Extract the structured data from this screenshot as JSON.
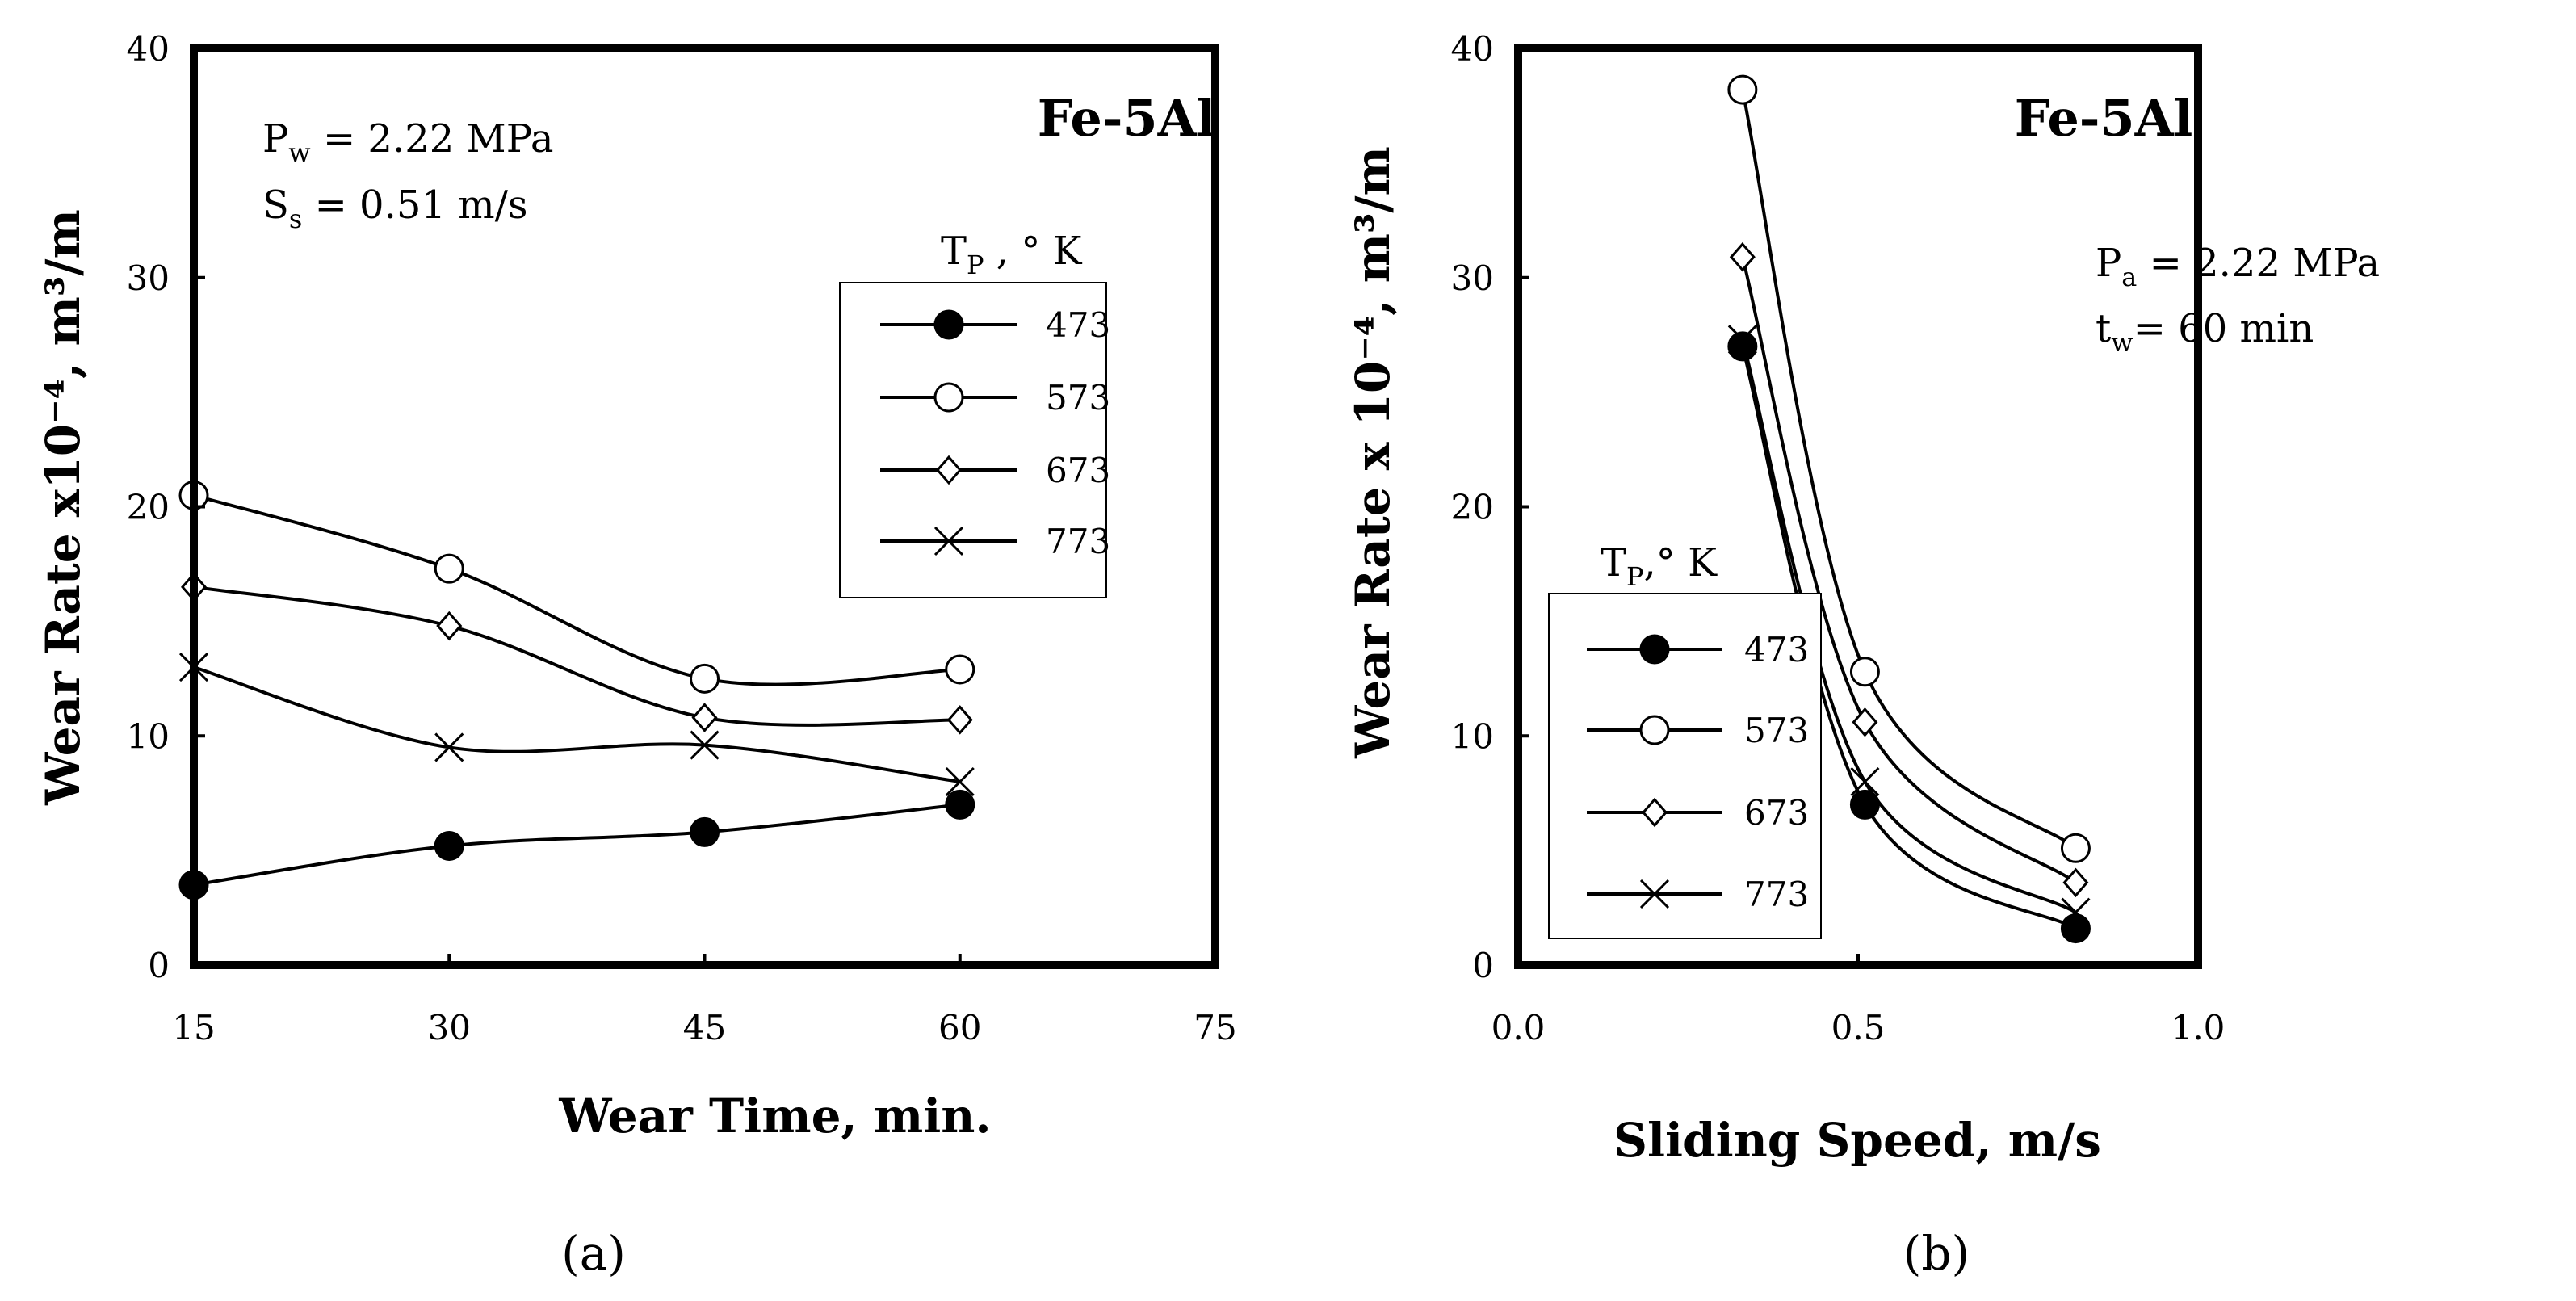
{
  "chart_data": [
    {
      "type": "line",
      "panel_label": "a",
      "title": "Fe-5Al",
      "xlabel": "Wear Time, min.",
      "ylabel": "Wear Rate x10⁻⁴, m³/m",
      "xlim": [
        15,
        75
      ],
      "ylim": [
        0,
        40
      ],
      "xticks": [
        15,
        30,
        45,
        60,
        75
      ],
      "yticks": [
        0,
        10,
        20,
        30,
        40
      ],
      "xtick_labels": [
        "15",
        "30",
        "45",
        "60",
        "75"
      ],
      "ytick_labels": [
        "0",
        "10",
        "20",
        "30",
        "40"
      ],
      "annotations": [
        {
          "main": "P",
          "sub": "w",
          "rest": " = 2.22 MPa"
        },
        {
          "main": "S",
          "sub": "s",
          "rest": " = 0.51 m/s"
        }
      ],
      "legend_title": {
        "main": "T",
        "sub": "P",
        "rest": " , ° K"
      },
      "legend_position": "top-right",
      "x": [
        15,
        30,
        45,
        60
      ],
      "series": [
        {
          "name": "473",
          "marker": "filled-circle",
          "values": [
            3.5,
            5.2,
            5.8,
            7.0
          ]
        },
        {
          "name": "573",
          "marker": "open-circle",
          "values": [
            20.5,
            17.3,
            12.5,
            12.9
          ]
        },
        {
          "name": "673",
          "marker": "open-diamond",
          "values": [
            16.5,
            14.8,
            10.8,
            10.7
          ]
        },
        {
          "name": "773",
          "marker": "cross",
          "values": [
            13.0,
            9.5,
            9.6,
            8.0
          ]
        }
      ]
    },
    {
      "type": "line",
      "panel_label": "b",
      "title": "Fe-5Al",
      "xlabel": "Sliding Speed, m/s",
      "ylabel": "Wear Rate x 10⁻⁴, m³/m",
      "xlim": [
        0.0,
        1.0
      ],
      "ylim": [
        0,
        40
      ],
      "xticks": [
        0.0,
        0.5,
        1.0
      ],
      "yticks": [
        0,
        10,
        20,
        30,
        40
      ],
      "xtick_labels": [
        "0.0",
        "0.5",
        "1.0"
      ],
      "ytick_labels": [
        "0",
        "10",
        "20",
        "30",
        "40"
      ],
      "annotations": [
        {
          "main": "P",
          "sub": "a",
          "rest": " = 2.22 MPa"
        },
        {
          "main": "t",
          "sub": "w",
          "rest": "= 60 min"
        }
      ],
      "legend_title": {
        "main": "T",
        "sub": "P",
        "rest": ",° K"
      },
      "legend_position": "bottom-left",
      "x": [
        0.33,
        0.51,
        0.82
      ],
      "series": [
        {
          "name": "473",
          "marker": "filled-circle",
          "values": [
            27.0,
            7.0,
            1.6
          ]
        },
        {
          "name": "573",
          "marker": "open-circle",
          "values": [
            38.2,
            12.8,
            5.1
          ]
        },
        {
          "name": "673",
          "marker": "open-diamond",
          "values": [
            30.9,
            10.6,
            3.6
          ]
        },
        {
          "name": "773",
          "marker": "cross",
          "values": [
            27.3,
            8.0,
            2.3
          ]
        }
      ]
    }
  ],
  "captions": [
    "(a)",
    "(b)"
  ]
}
